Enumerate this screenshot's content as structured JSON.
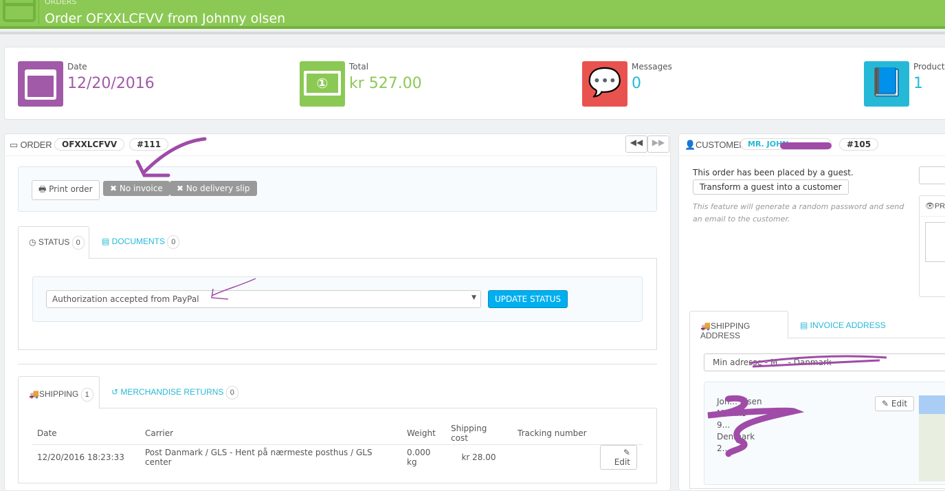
{
  "header": {
    "breadcrumb": "ORDERS",
    "title": "Order OFXXLCFVV from Johnny olsen"
  },
  "kpis": [
    {
      "label": "Date",
      "value": "12/20/2016",
      "color": "#a05aa8",
      "icon": "calendar-icon"
    },
    {
      "label": "Total",
      "value": "kr 527.00",
      "color": "#8bc954",
      "icon": "money-icon"
    },
    {
      "label": "Messages",
      "value": "0",
      "color": "#e9534f",
      "icon": "comments-icon"
    },
    {
      "label": "Products",
      "value": "1",
      "color": "#25b9d7",
      "icon": "book-icon"
    }
  ],
  "order": {
    "heading": "ORDER",
    "reference": "OFXXLCFVV",
    "id": "#111",
    "print": "Print order",
    "no_invoice": "No invoice",
    "no_delivery": "No delivery slip",
    "tabs": [
      {
        "label": "STATUS",
        "count": "0"
      },
      {
        "label": "DOCUMENTS",
        "count": "0"
      }
    ],
    "status_value": "Authorization accepted from PayPal",
    "update_status": "UPDATE STATUS",
    "shipping_tabs": [
      {
        "label": "SHIPPING",
        "count": "1"
      },
      {
        "label": "MERCHANDISE RETURNS",
        "count": "0"
      }
    ],
    "shipping_columns": [
      "Date",
      "Carrier",
      "Weight",
      "Shipping cost",
      "Tracking number"
    ],
    "shipping_rows": [
      {
        "date": "12/20/2016 18:23:33",
        "carrier": "Post Danmark / GLS - Hent på nærmeste posthus / GLS center",
        "weight": "0.000 kg",
        "cost": "kr 28.00",
        "tracking": "",
        "edit": "Edit"
      }
    ]
  },
  "customer": {
    "heading": "CUSTOMER",
    "name": "MR. JOHN",
    "id": "#105",
    "guest_text": "This order has been placed by a guest.",
    "transform": "Transform a guest into a customer",
    "help": "This feature will generate a random password and send an email to the customer.",
    "private_tab": "PR",
    "address_tabs": [
      "SHIPPING ADDRESS",
      "INVOICE ADDRESS"
    ],
    "address_select": "Min adresse - M... - Danmark",
    "address_lines": [
      "Joh... olsen",
      "M...kke",
      "9...",
      "Denmark",
      "2..."
    ],
    "edit": "Edit"
  }
}
